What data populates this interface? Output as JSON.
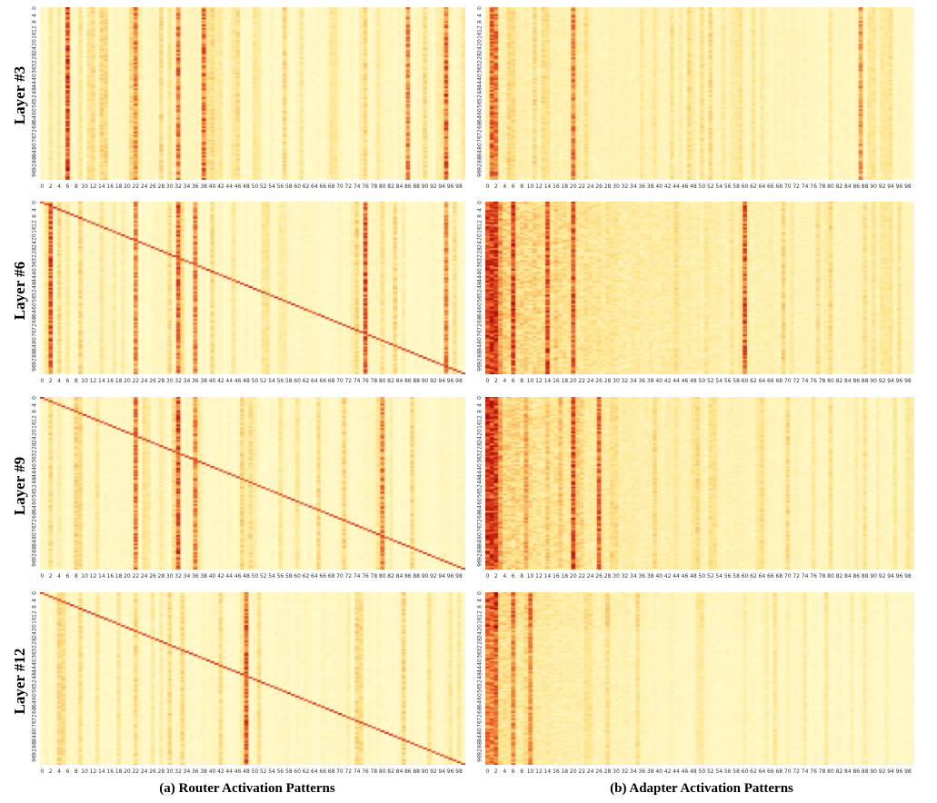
{
  "captions": {
    "router": "(a) Router Activation Patterns",
    "adapter": "(b) Adapter Activation Patterns"
  },
  "layers": [
    {
      "id": "3",
      "label": "Layer #3"
    },
    {
      "id": "6",
      "label": "Layer #6"
    },
    {
      "id": "9",
      "label": "Layer #9"
    },
    {
      "id": "12",
      "label": "Layer #12"
    }
  ],
  "chart_data": [
    {
      "type": "heatmap",
      "group": "router",
      "layer": "Layer #3",
      "x_ticks": [
        "0",
        "2",
        "4",
        "6",
        "8",
        "10",
        "12",
        "14",
        "16",
        "18",
        "20",
        "22",
        "24",
        "26",
        "28",
        "30",
        "32",
        "34",
        "36",
        "38",
        "40",
        "42",
        "44",
        "46",
        "48",
        "50",
        "52",
        "54",
        "56",
        "58",
        "60",
        "62",
        "64",
        "66",
        "68",
        "70",
        "72",
        "74",
        "76",
        "78",
        "80",
        "82",
        "84",
        "86",
        "88",
        "90",
        "92",
        "94",
        "96",
        "98"
      ],
      "y_ticks": [
        "0",
        "4",
        "8",
        "12",
        "16",
        "20",
        "24",
        "28",
        "32",
        "36",
        "40",
        "44",
        "48",
        "52",
        "56",
        "60",
        "64",
        "68",
        "72",
        "76",
        "80",
        "84",
        "88",
        "92",
        "96"
      ],
      "x_range": [
        0,
        99
      ],
      "y_range": [
        0,
        99
      ],
      "colors": [
        "#fffbd0",
        "#fde38a",
        "#f7a24a",
        "#e34a22",
        "#b30f0a"
      ],
      "strong_columns": [
        6,
        22,
        32,
        38,
        86,
        95
      ],
      "diagonal": false
    },
    {
      "type": "heatmap",
      "group": "adapter",
      "layer": "Layer #3",
      "x_ticks": [
        "0",
        "2",
        "4",
        "6",
        "8",
        "10",
        "12",
        "14",
        "16",
        "18",
        "20",
        "22",
        "24",
        "26",
        "28",
        "30",
        "32",
        "34",
        "36",
        "38",
        "40",
        "42",
        "44",
        "46",
        "48",
        "50",
        "52",
        "54",
        "56",
        "58",
        "60",
        "62",
        "64",
        "66",
        "68",
        "70",
        "72",
        "74",
        "76",
        "78",
        "80",
        "82",
        "84",
        "86",
        "88",
        "90",
        "92",
        "94",
        "96",
        "98"
      ],
      "y_ticks": [
        "0",
        "4",
        "8",
        "12",
        "16",
        "20",
        "24",
        "28",
        "32",
        "36",
        "40",
        "44",
        "48",
        "52",
        "56",
        "60",
        "64",
        "68",
        "72",
        "76",
        "80",
        "84",
        "88",
        "92",
        "96"
      ],
      "x_range": [
        0,
        99
      ],
      "y_range": [
        0,
        99
      ],
      "colors": [
        "#fffbd0",
        "#fde38a",
        "#f7a24a",
        "#e34a22",
        "#b30f0a"
      ],
      "strong_columns": [
        1,
        2,
        20,
        87
      ],
      "diagonal": false
    },
    {
      "type": "heatmap",
      "group": "router",
      "layer": "Layer #6",
      "x_ticks": [
        "0",
        "2",
        "4",
        "6",
        "8",
        "10",
        "12",
        "14",
        "16",
        "18",
        "20",
        "22",
        "24",
        "26",
        "28",
        "30",
        "32",
        "34",
        "36",
        "38",
        "40",
        "42",
        "44",
        "46",
        "48",
        "50",
        "52",
        "54",
        "56",
        "58",
        "60",
        "62",
        "64",
        "66",
        "68",
        "70",
        "72",
        "74",
        "76",
        "78",
        "80",
        "82",
        "84",
        "86",
        "88",
        "90",
        "92",
        "94",
        "96",
        "98"
      ],
      "y_ticks": [
        "0",
        "4",
        "8",
        "12",
        "16",
        "20",
        "24",
        "28",
        "32",
        "36",
        "40",
        "44",
        "48",
        "52",
        "56",
        "60",
        "64",
        "68",
        "72",
        "76",
        "80",
        "84",
        "88",
        "92",
        "96"
      ],
      "x_range": [
        0,
        99
      ],
      "y_range": [
        0,
        99
      ],
      "colors": [
        "#fffbd0",
        "#fde38a",
        "#f7a24a",
        "#e34a22",
        "#b30f0a"
      ],
      "strong_columns": [
        2,
        22,
        32,
        36,
        76,
        95
      ],
      "diagonal": true
    },
    {
      "type": "heatmap",
      "group": "adapter",
      "layer": "Layer #6",
      "x_ticks": [
        "0",
        "2",
        "4",
        "6",
        "8",
        "10",
        "12",
        "14",
        "16",
        "18",
        "20",
        "22",
        "24",
        "26",
        "28",
        "30",
        "32",
        "34",
        "36",
        "38",
        "40",
        "42",
        "44",
        "46",
        "48",
        "50",
        "52",
        "54",
        "56",
        "58",
        "60",
        "62",
        "64",
        "66",
        "68",
        "70",
        "72",
        "74",
        "76",
        "78",
        "80",
        "82",
        "84",
        "86",
        "88",
        "90",
        "92",
        "94",
        "96",
        "98"
      ],
      "y_ticks": [
        "0",
        "4",
        "8",
        "12",
        "16",
        "20",
        "24",
        "28",
        "32",
        "36",
        "40",
        "44",
        "48",
        "52",
        "56",
        "60",
        "64",
        "68",
        "72",
        "76",
        "80",
        "84",
        "88",
        "92",
        "96"
      ],
      "x_range": [
        0,
        99
      ],
      "y_range": [
        0,
        99
      ],
      "colors": [
        "#fffbd0",
        "#fde38a",
        "#f7a24a",
        "#e34a22",
        "#b30f0a"
      ],
      "strong_columns": [
        0,
        1,
        2,
        6,
        14,
        20,
        60
      ],
      "diagonal": false
    },
    {
      "type": "heatmap",
      "group": "router",
      "layer": "Layer #9",
      "x_ticks": [
        "0",
        "2",
        "4",
        "6",
        "8",
        "10",
        "12",
        "14",
        "16",
        "18",
        "20",
        "22",
        "24",
        "26",
        "28",
        "30",
        "32",
        "34",
        "36",
        "38",
        "40",
        "42",
        "44",
        "46",
        "48",
        "50",
        "52",
        "54",
        "56",
        "58",
        "60",
        "62",
        "64",
        "66",
        "68",
        "70",
        "72",
        "74",
        "76",
        "78",
        "80",
        "82",
        "84",
        "86",
        "88",
        "90",
        "92",
        "94",
        "96",
        "98"
      ],
      "y_ticks": [
        "0",
        "4",
        "8",
        "12",
        "16",
        "20",
        "24",
        "28",
        "32",
        "36",
        "40",
        "44",
        "48",
        "52",
        "56",
        "60",
        "64",
        "68",
        "72",
        "76",
        "80",
        "84",
        "88",
        "92",
        "96"
      ],
      "x_range": [
        0,
        99
      ],
      "y_range": [
        0,
        99
      ],
      "colors": [
        "#fffbd0",
        "#fde38a",
        "#f7a24a",
        "#e34a22",
        "#b30f0a"
      ],
      "strong_columns": [
        22,
        32,
        36,
        80
      ],
      "diagonal": true
    },
    {
      "type": "heatmap",
      "group": "adapter",
      "layer": "Layer #9",
      "x_ticks": [
        "0",
        "2",
        "4",
        "6",
        "8",
        "10",
        "12",
        "14",
        "16",
        "18",
        "20",
        "22",
        "24",
        "26",
        "28",
        "30",
        "32",
        "34",
        "36",
        "38",
        "40",
        "42",
        "44",
        "46",
        "48",
        "50",
        "52",
        "54",
        "56",
        "58",
        "60",
        "62",
        "64",
        "66",
        "68",
        "70",
        "72",
        "74",
        "76",
        "78",
        "80",
        "82",
        "84",
        "86",
        "88",
        "90",
        "92",
        "94",
        "96",
        "98"
      ],
      "y_ticks": [
        "0",
        "4",
        "8",
        "12",
        "16",
        "20",
        "24",
        "28",
        "32",
        "36",
        "40",
        "44",
        "48",
        "52",
        "56",
        "60",
        "64",
        "68",
        "72",
        "76",
        "80",
        "84",
        "88",
        "92",
        "96"
      ],
      "x_range": [
        0,
        99
      ],
      "y_range": [
        0,
        99
      ],
      "colors": [
        "#fffbd0",
        "#fde38a",
        "#f7a24a",
        "#e34a22",
        "#b30f0a"
      ],
      "strong_columns": [
        0,
        1,
        2,
        20,
        26
      ],
      "diagonal": false
    },
    {
      "type": "heatmap",
      "group": "router",
      "layer": "Layer #12",
      "x_ticks": [
        "0",
        "2",
        "4",
        "6",
        "8",
        "10",
        "12",
        "14",
        "16",
        "18",
        "20",
        "22",
        "24",
        "26",
        "28",
        "30",
        "32",
        "34",
        "36",
        "38",
        "40",
        "42",
        "44",
        "46",
        "48",
        "50",
        "52",
        "54",
        "56",
        "58",
        "60",
        "62",
        "64",
        "66",
        "68",
        "70",
        "72",
        "74",
        "76",
        "78",
        "80",
        "82",
        "84",
        "86",
        "88",
        "90",
        "92",
        "94",
        "96",
        "98"
      ],
      "y_ticks": [
        "0",
        "4",
        "8",
        "12",
        "16",
        "20",
        "24",
        "28",
        "32",
        "36",
        "40",
        "44",
        "48",
        "52",
        "56",
        "60",
        "64",
        "68",
        "72",
        "76",
        "80",
        "84",
        "88",
        "92",
        "96"
      ],
      "x_range": [
        0,
        99
      ],
      "y_range": [
        0,
        99
      ],
      "colors": [
        "#fffbd0",
        "#fde38a",
        "#f7a24a",
        "#e34a22",
        "#b30f0a"
      ],
      "strong_columns": [
        48
      ],
      "diagonal": true
    },
    {
      "type": "heatmap",
      "group": "adapter",
      "layer": "Layer #12",
      "x_ticks": [
        "0",
        "2",
        "4",
        "6",
        "8",
        "10",
        "12",
        "14",
        "16",
        "18",
        "20",
        "22",
        "24",
        "26",
        "28",
        "30",
        "32",
        "34",
        "36",
        "38",
        "40",
        "42",
        "44",
        "46",
        "48",
        "50",
        "52",
        "54",
        "56",
        "58",
        "60",
        "62",
        "64",
        "66",
        "68",
        "70",
        "72",
        "74",
        "76",
        "78",
        "80",
        "82",
        "84",
        "86",
        "88",
        "90",
        "92",
        "94",
        "96",
        "98"
      ],
      "y_ticks": [
        "0",
        "4",
        "8",
        "12",
        "16",
        "20",
        "24",
        "28",
        "32",
        "36",
        "40",
        "44",
        "48",
        "52",
        "56",
        "60",
        "64",
        "68",
        "72",
        "76",
        "80",
        "84",
        "88",
        "92",
        "96"
      ],
      "x_range": [
        0,
        99
      ],
      "y_range": [
        0,
        99
      ],
      "colors": [
        "#fffbd0",
        "#fde38a",
        "#f7a24a",
        "#e34a22",
        "#b30f0a"
      ],
      "strong_columns": [
        0,
        1,
        2,
        6,
        10
      ],
      "diagonal": false
    }
  ]
}
